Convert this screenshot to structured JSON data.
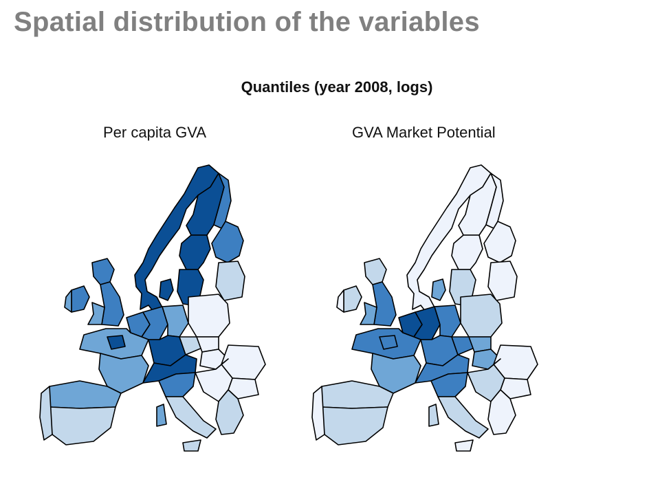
{
  "slide": {
    "title": "Spatial distribution of the variables"
  },
  "figure": {
    "title": "Quantiles (year 2008, logs)"
  },
  "maps": [
    {
      "title": "Per capita GVA",
      "region_quantiles": {
        "norway": 4,
        "sweden_north": 4,
        "sweden_central": 4,
        "sweden_south": 4,
        "finland_north": 3,
        "finland_south": 3,
        "denmark": 4,
        "baltics": 1,
        "ireland": 3,
        "ireland_west": 2,
        "uk_scotland": 3,
        "uk_england": 3,
        "uk_wales": 2,
        "benelux": 3,
        "germany_west": 3,
        "germany_east": 2,
        "germany_south": 4,
        "france_north": 2,
        "france_paris": 4,
        "france_south": 2,
        "spain_north": 2,
        "spain_south": 1,
        "portugal": 1,
        "alps": 4,
        "italy_north": 3,
        "italy_south": 1,
        "sardinia": 2,
        "sicily": 1,
        "poland": 0,
        "czechia": 1,
        "slovakia": 0,
        "hungary": 0,
        "romania": 0,
        "bulgaria": 0,
        "balkans": 0,
        "greece": 1
      }
    },
    {
      "title": "GVA Market Potential",
      "region_quantiles": {
        "norway": 0,
        "sweden_north": 0,
        "sweden_central": 0,
        "sweden_south": 1,
        "finland_north": 0,
        "finland_south": 0,
        "denmark": 2,
        "baltics": 0,
        "ireland": 1,
        "ireland_west": 0,
        "uk_scotland": 1,
        "uk_england": 3,
        "uk_wales": 2,
        "benelux": 4,
        "germany_west": 4,
        "germany_east": 3,
        "germany_south": 3,
        "france_north": 3,
        "france_paris": 3,
        "france_south": 2,
        "spain_north": 1,
        "spain_south": 1,
        "portugal": 0,
        "alps": 3,
        "italy_north": 3,
        "italy_south": 1,
        "sardinia": 1,
        "sicily": 0,
        "poland": 1,
        "czechia": 3,
        "slovakia": 2,
        "hungary": 2,
        "romania": 0,
        "bulgaria": 0,
        "balkans": 1,
        "greece": 0
      }
    }
  ],
  "palette": [
    "#eef3fc",
    "#c3d8eb",
    "#6fa6d6",
    "#3d7fc1",
    "#0b4f95"
  ],
  "border_color": "#000000"
}
